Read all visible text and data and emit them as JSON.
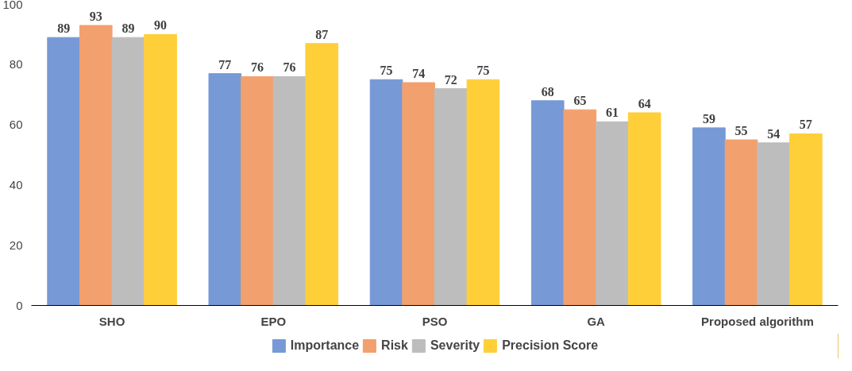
{
  "chart_data": {
    "type": "bar",
    "categories": [
      "SHO",
      "EPO",
      "PSO",
      "GA",
      "Proposed algorithm"
    ],
    "series": [
      {
        "name": "Importance",
        "color": "#7799d6",
        "values": [
          89,
          77,
          75,
          68,
          59
        ]
      },
      {
        "name": "Risk",
        "color": "#f2a06e",
        "values": [
          93,
          76,
          74,
          65,
          55
        ]
      },
      {
        "name": "Severity",
        "color": "#bdbdbd",
        "values": [
          89,
          76,
          72,
          61,
          54
        ]
      },
      {
        "name": "Precision Score",
        "color": "#ffcf3a",
        "values": [
          90,
          87,
          75,
          64,
          57
        ]
      }
    ],
    "ylim": [
      0,
      100
    ],
    "yticks": [
      0,
      20,
      40,
      60,
      80,
      100
    ],
    "grid": false,
    "legend": "bottom",
    "data_labels": true
  }
}
